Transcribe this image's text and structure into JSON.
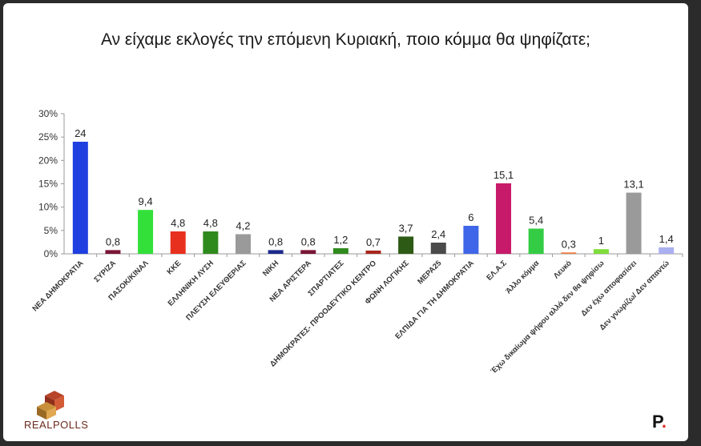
{
  "brand": {
    "left_logo_text": "REALPOLLS",
    "right_logo_text": "P",
    "right_logo_dot": "."
  },
  "colors": {
    "background": "#ffffff",
    "axis": "#9a9a9a"
  },
  "chart_data": {
    "type": "bar",
    "title": "Αν είχαμε εκλογές την επόμενη Κυριακή, ποιο κόμμα θα ψηφίζατε;",
    "xlabel": "",
    "ylabel": "",
    "ylim": [
      0,
      30
    ],
    "yticks": [
      "0%",
      "5%",
      "10%",
      "15%",
      "20%",
      "25%",
      "30%"
    ],
    "grid": false,
    "legend": "none",
    "categories": [
      "ΝΕΑ ΔΗΜΟΚΡΑΤΙΑ",
      "ΣΥΡΙΖΑ",
      "ΠΑΣΟΚ/ΚΙΝΑΛ",
      "ΚΚΕ",
      "ΕΛΛΗΝΙΚΗ ΛΥΣΗ",
      "ΠΛΕΥΣΗ ΕΛΕΥΘΕΡΙΑΣ",
      "ΝΙΚΗ",
      "ΝΕΑ ΑΡΙΣΤΕΡΑ",
      "ΣΠΑΡΤΙΑΤΕΣ",
      "ΔΗΜΟΚΡΑΤΕΣ- ΠΡΟΟΔΕΥΤΙΚΟ ΚΕΝΤΡΟ",
      "ΦΩΝΗ ΛΟΓΙΚΗΣ",
      "ΜΕΡΑ25",
      "ΕΛΠΙΔΑ ΓΙΑ ΤΗ ΔΗΜΟΚΡΑΤΙΑ",
      "ΕΛ.Α.Σ",
      "Άλλο κόμμα",
      "Λευκό",
      "Έχω δικαίωμα ψήφου αλλά δεν θα ψηφίσω",
      "Δεν έχω αποφασίσει",
      "Δεν γνωρίζω/ Δεν απαντώ"
    ],
    "values": [
      24,
      0.8,
      9.4,
      4.8,
      4.8,
      4.2,
      0.8,
      0.8,
      1.2,
      0.7,
      3.7,
      2.4,
      6,
      15.1,
      5.4,
      0.3,
      1,
      13.1,
      1.4
    ],
    "value_labels": [
      "24",
      "0,8",
      "9,4",
      "4,8",
      "4,8",
      "4,2",
      "0,8",
      "0,8",
      "1,2",
      "0,7",
      "3,7",
      "2,4",
      "6",
      "15,1",
      "5,4",
      "0,3",
      "1",
      "13,1",
      "1,4"
    ],
    "bar_colors": [
      "#1f3fe0",
      "#7a1636",
      "#33e03a",
      "#e8301e",
      "#2f8a1e",
      "#9a9a9a",
      "#1c2a8c",
      "#7a1636",
      "#2f8a1e",
      "#a8261c",
      "#2d5a14",
      "#4a4a4a",
      "#3f66e8",
      "#c81a6a",
      "#33cc44",
      "#f07a40",
      "#7fdc3a",
      "#9a9a9a",
      "#aab0f0"
    ]
  }
}
